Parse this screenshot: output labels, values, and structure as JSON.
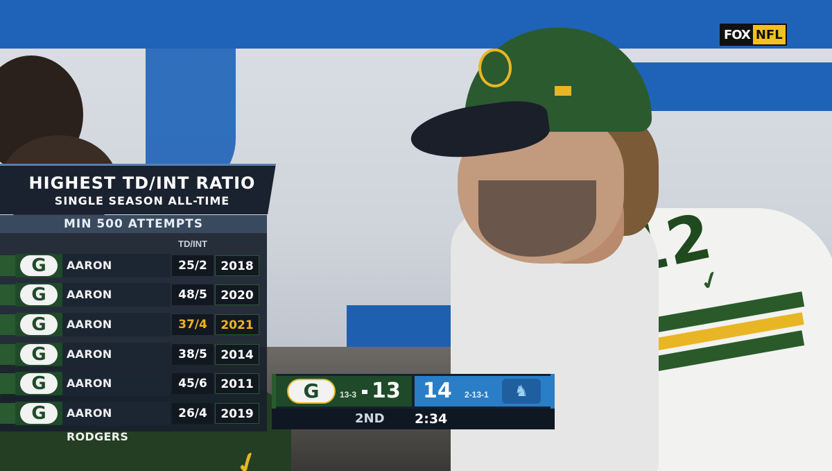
{
  "network": {
    "fox": "FOX",
    "nfl": "NFL"
  },
  "graphic": {
    "title": "HIGHEST TD/INT RATIO",
    "subtitle": "SINGLE SEASON ALL-TIME",
    "qualifier": "MIN 500 ATTEMPTS",
    "column_header": "TD/INT",
    "team_logo_letter": "G",
    "rows": [
      {
        "name": "AARON RODGERS",
        "ratio": "25/2",
        "year": "2018",
        "highlight": false
      },
      {
        "name": "AARON RODGERS",
        "ratio": "48/5",
        "year": "2020",
        "highlight": false
      },
      {
        "name": "AARON RODGERS",
        "ratio": "37/4",
        "year": "2021",
        "highlight": true
      },
      {
        "name": "AARON RODGERS",
        "ratio": "38/5",
        "year": "2014",
        "highlight": false
      },
      {
        "name": "AARON RODGERS",
        "ratio": "45/6",
        "year": "2011",
        "highlight": false
      },
      {
        "name": "AARON RODGERS",
        "ratio": "26/4",
        "year": "2019",
        "highlight": false
      }
    ]
  },
  "scorebug": {
    "home": {
      "logo_letter": "G",
      "record": "13-3",
      "score": "13",
      "color": "#1f4a2a"
    },
    "away": {
      "score": "14",
      "record": "2-13-1",
      "color": "#2a7ec7"
    },
    "quarter": "2ND",
    "clock": "2:34"
  },
  "jersey_number": "12"
}
